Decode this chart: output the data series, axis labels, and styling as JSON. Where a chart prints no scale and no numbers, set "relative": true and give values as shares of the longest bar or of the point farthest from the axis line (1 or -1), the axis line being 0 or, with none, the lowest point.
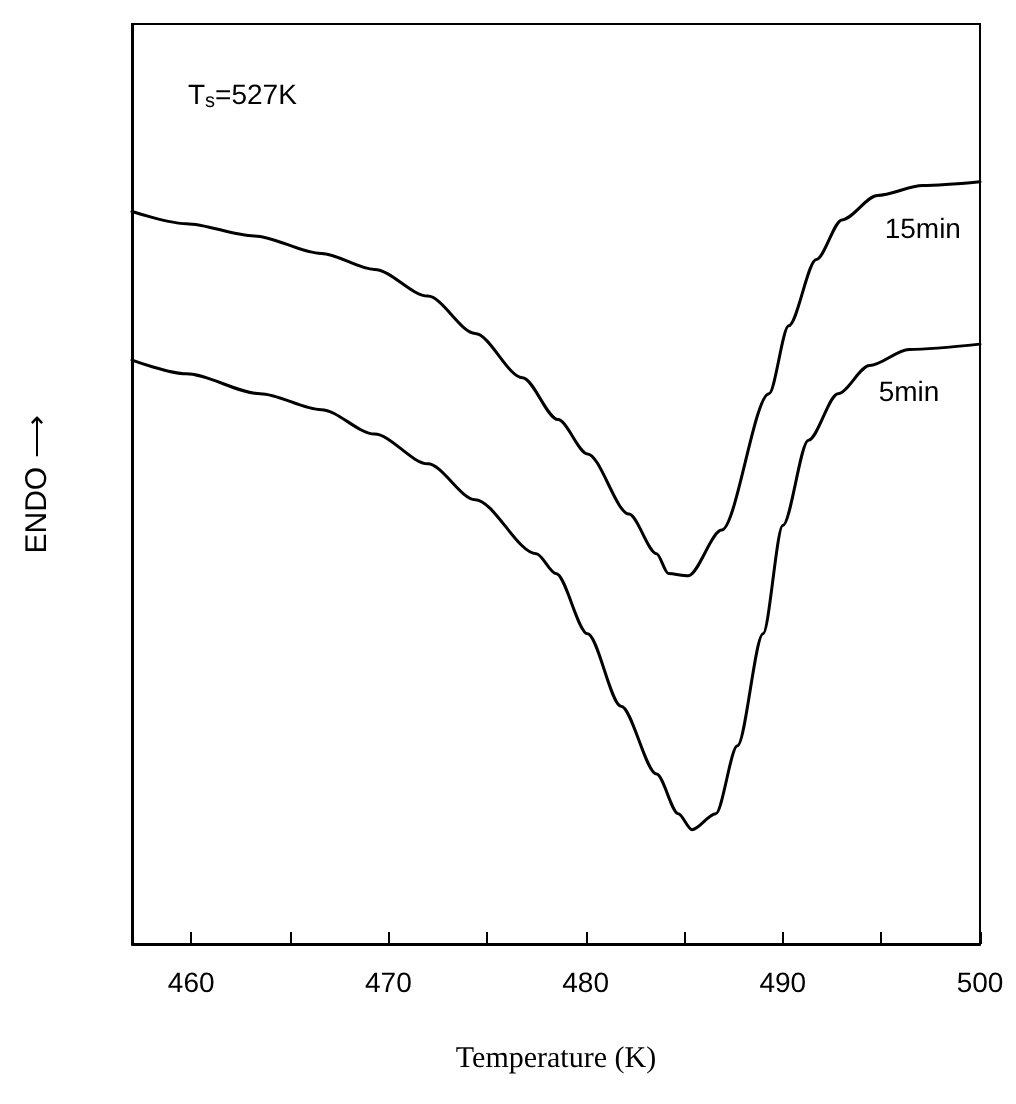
{
  "chart_data": {
    "type": "line",
    "relative": true,
    "xlabel": "Temperature (K)",
    "ylabel": "ENDO ⟶",
    "annotations": [
      "T$_{s}$=527K"
    ],
    "xlim": [
      457,
      500
    ],
    "xticks": [
      460,
      {
        "value": 465,
        "label": null
      },
      470,
      {
        "value": 475,
        "label": null
      },
      480,
      {
        "value": 485,
        "label": null
      },
      490,
      {
        "value": 495,
        "label": null
      },
      500
    ],
    "grid": false,
    "legend": false,
    "marker": "none",
    "line_style": "solid",
    "series": [
      {
        "name": "15min",
        "color": "#000000",
        "x": [
          457,
          459.75,
          463.2,
          466.6,
          469.3,
          472.0,
          474.4,
          476.8,
          478.6,
          480.1,
          482.2,
          483.6,
          484.2,
          485.2,
          486.9,
          489.3,
          490.3,
          491.7,
          493.0,
          494.8,
          497.1,
          500
        ],
        "values": [
          0.961,
          0.945,
          0.929,
          0.906,
          0.885,
          0.85,
          0.801,
          0.743,
          0.688,
          0.643,
          0.564,
          0.512,
          0.486,
          0.483,
          0.543,
          0.722,
          0.811,
          0.898,
          0.95,
          0.982,
          0.995,
          1
        ]
      },
      {
        "name": "5min",
        "color": "#000000",
        "x": [
          457,
          459.75,
          463.5,
          466.6,
          469.3,
          472.0,
          474.4,
          477.5,
          478.5,
          480.1,
          481.8,
          483.6,
          484.7,
          485.4,
          486.6,
          487.7,
          489.0,
          490.0,
          491.3,
          492.8,
          494.4,
          496.4,
          500
        ],
        "values": [
          0.766,
          0.748,
          0.722,
          0.701,
          0.669,
          0.63,
          0.583,
          0.512,
          0.486,
          0.407,
          0.312,
          0.223,
          0.171,
          0.15,
          0.171,
          0.26,
          0.407,
          0.549,
          0.661,
          0.722,
          0.759,
          0.78,
          0.787
        ]
      }
    ]
  }
}
